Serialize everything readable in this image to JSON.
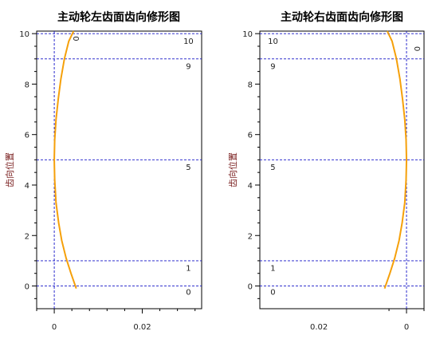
{
  "colors": {
    "curve": "#f5a00a",
    "guide": "#1414c8"
  },
  "chart_data": [
    {
      "type": "line",
      "title": "主动轮左齿面齿向修形图",
      "ylabel": "齿向位置",
      "xlim": [
        -0.004,
        0.0335
      ],
      "ylim": [
        -0.9,
        10.1
      ],
      "xticks": [
        "0",
        "0.02"
      ],
      "xtick_values": [
        0,
        0.02
      ],
      "yticks": [
        "0",
        "2",
        "4",
        "6",
        "8",
        "10"
      ],
      "ytick_values": [
        0,
        2,
        4,
        6,
        8,
        10
      ],
      "grid": false,
      "guide_x": [
        0
      ],
      "guide_y": [
        0,
        1,
        5,
        9,
        10
      ],
      "annotations": [
        {
          "text": "10",
          "x": 0.0305,
          "y": 9.6
        },
        {
          "text": "9",
          "x": 0.0305,
          "y": 8.6
        },
        {
          "text": "5",
          "x": 0.0305,
          "y": 4.6
        },
        {
          "text": "1",
          "x": 0.0305,
          "y": 0.6
        },
        {
          "text": "0",
          "x": 0.0305,
          "y": -0.35
        },
        {
          "text": "0",
          "x": 0.0043,
          "y": 9.8,
          "rotate": 90
        }
      ],
      "series": [
        {
          "x": [
            0.005,
            0.0038,
            0.0027,
            0.0017,
            0.001,
            0.0004,
            0.0001,
            0,
            0.0001,
            0.0004,
            0.0009,
            0.0015,
            0.0023,
            0.0033,
            0.0044
          ],
          "y": [
            -0.1,
            0.5,
            1.1,
            1.8,
            2.5,
            3.3,
            4.2,
            5.0,
            5.8,
            6.6,
            7.4,
            8.2,
            9.0,
            9.7,
            10.2
          ]
        }
      ]
    },
    {
      "type": "line",
      "title": "主动轮右齿面齿向修形图",
      "ylabel": "齿向位置",
      "xlim": [
        -0.0335,
        0.004
      ],
      "x_reversed": true,
      "ylim": [
        -0.9,
        10.1
      ],
      "xticks": [
        "0.02",
        "0"
      ],
      "xtick_values": [
        0.02,
        0
      ],
      "yticks": [
        "0",
        "2",
        "4",
        "6",
        "8",
        "10"
      ],
      "ytick_values": [
        0,
        2,
        4,
        6,
        8,
        10
      ],
      "grid": false,
      "guide_x": [
        0
      ],
      "guide_y": [
        0,
        1,
        5,
        9,
        10
      ],
      "annotations": [
        {
          "text": "10",
          "x": 0.0305,
          "y": 9.6
        },
        {
          "text": "9",
          "x": 0.0305,
          "y": 8.6
        },
        {
          "text": "5",
          "x": 0.0305,
          "y": 4.6
        },
        {
          "text": "1",
          "x": 0.0305,
          "y": 0.6
        },
        {
          "text": "0",
          "x": 0.0305,
          "y": -0.35
        },
        {
          "text": "0",
          "x": -0.0018,
          "y": 9.4,
          "rotate": 90
        }
      ],
      "series": [
        {
          "x": [
            0.005,
            0.0038,
            0.0027,
            0.0017,
            0.001,
            0.0004,
            0.0001,
            0,
            0.0001,
            0.0004,
            0.0009,
            0.0015,
            0.0023,
            0.0033,
            0.0044
          ],
          "y": [
            -0.1,
            0.5,
            1.1,
            1.8,
            2.5,
            3.3,
            4.2,
            5.0,
            5.8,
            6.6,
            7.4,
            8.2,
            9.0,
            9.7,
            10.2
          ]
        }
      ]
    }
  ]
}
